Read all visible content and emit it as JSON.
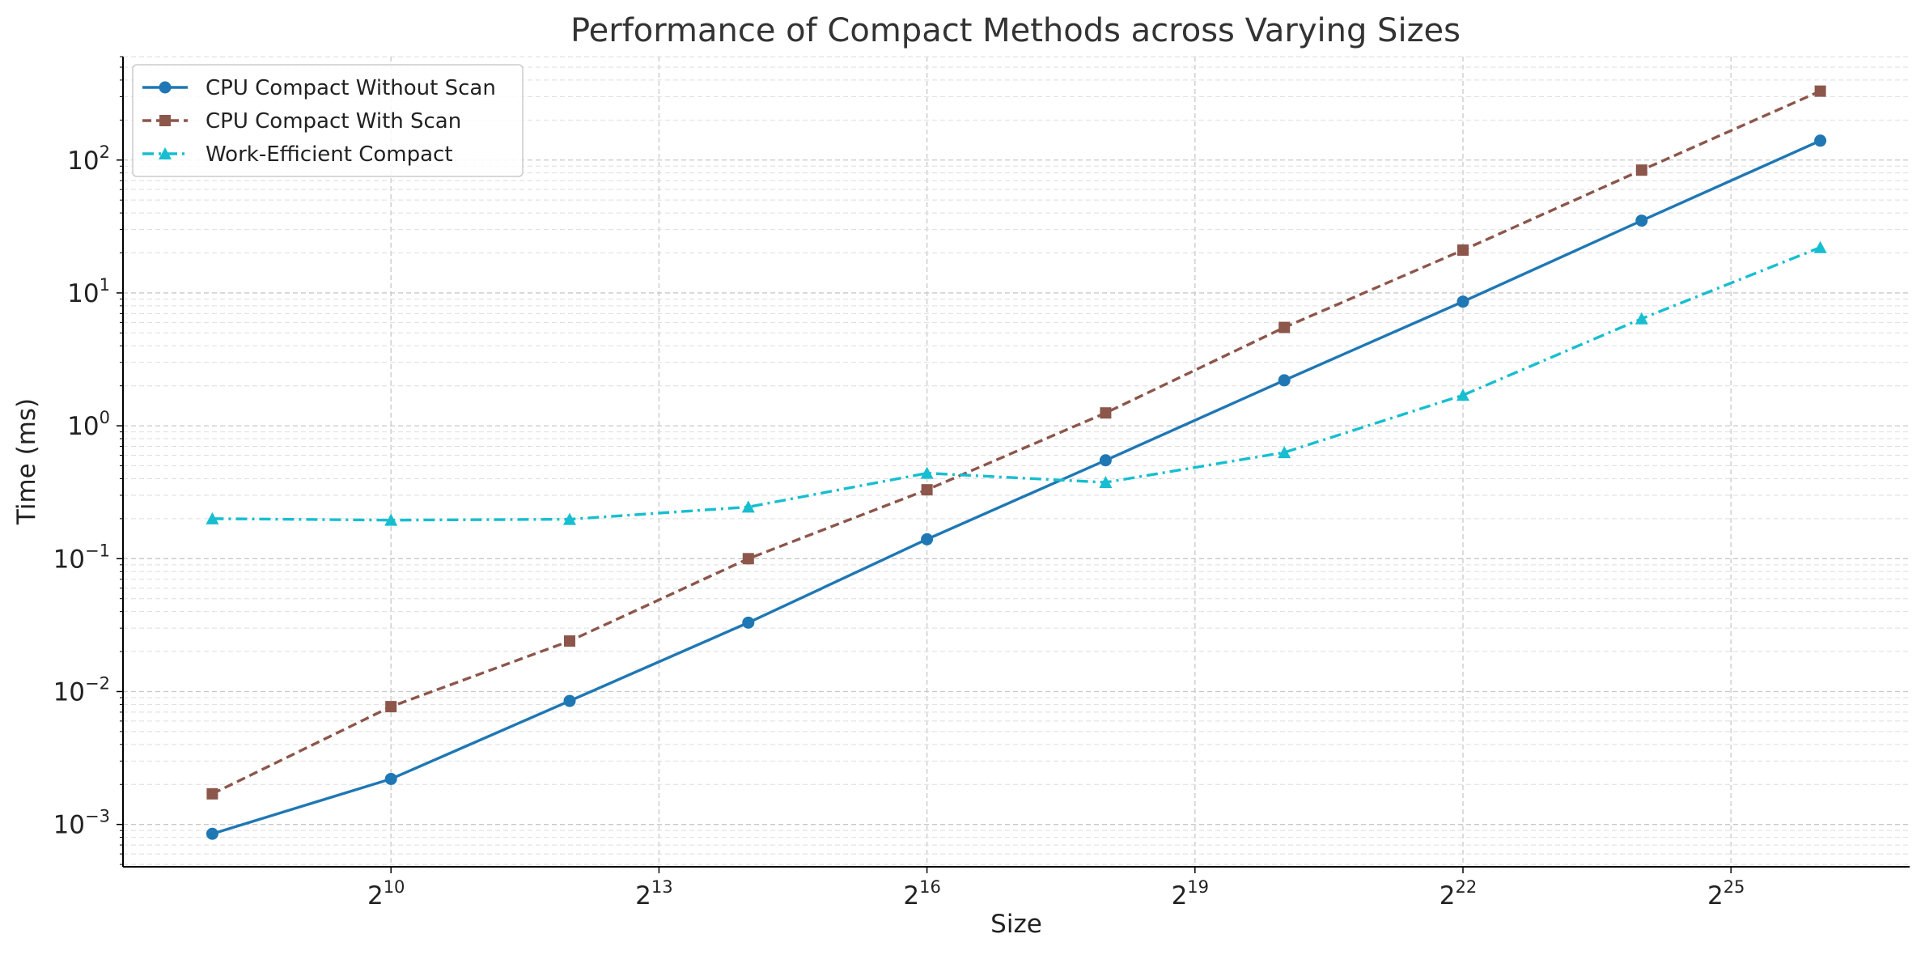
{
  "chart_data": {
    "type": "line",
    "title": "Performance of Compact Methods across Varying Sizes",
    "xlabel": "Size",
    "ylabel": "Time (ms)",
    "x_scale": "log2",
    "y_scale": "log10",
    "xlim": [
      128,
      134217728
    ],
    "ylim": [
      0.00048,
      600
    ],
    "x_ticks": [
      {
        "value": 1024,
        "base": "2",
        "exp": "10"
      },
      {
        "value": 8192,
        "base": "2",
        "exp": "13"
      },
      {
        "value": 65536,
        "base": "2",
        "exp": "16"
      },
      {
        "value": 524288,
        "base": "2",
        "exp": "19"
      },
      {
        "value": 4194304,
        "base": "2",
        "exp": "22"
      },
      {
        "value": 33554432,
        "base": "2",
        "exp": "25"
      }
    ],
    "y_ticks": [
      {
        "value": 0.001,
        "base": "10",
        "exp": "−3"
      },
      {
        "value": 0.01,
        "base": "10",
        "exp": "−2"
      },
      {
        "value": 0.1,
        "base": "10",
        "exp": "−1"
      },
      {
        "value": 1,
        "base": "10",
        "exp": "0"
      },
      {
        "value": 10,
        "base": "10",
        "exp": "1"
      },
      {
        "value": 100,
        "base": "10",
        "exp": "2"
      }
    ],
    "grid": true,
    "legend_position": "top-left",
    "x": [
      256,
      1024,
      4096,
      16384,
      65536,
      262144,
      1048576,
      4194304,
      16777216,
      67108864
    ],
    "series": [
      {
        "name": "CPU Compact Without Scan",
        "color": "#1f77b4",
        "dash": "solid",
        "marker": "circle",
        "values": [
          0.00085,
          0.0022,
          0.0085,
          0.033,
          0.14,
          0.55,
          2.2,
          8.6,
          35,
          140
        ]
      },
      {
        "name": "CPU Compact With Scan",
        "color": "#8c564b",
        "dash": "dashed",
        "marker": "square",
        "values": [
          0.0017,
          0.0077,
          0.024,
          0.1,
          0.33,
          1.25,
          5.5,
          21,
          84,
          330
        ]
      },
      {
        "name": "Work-Efficient Compact",
        "color": "#17becf",
        "dash": "dashdot",
        "marker": "triangle",
        "values": [
          0.2,
          0.195,
          0.198,
          0.245,
          0.44,
          0.375,
          0.63,
          1.7,
          6.4,
          22
        ]
      }
    ]
  }
}
